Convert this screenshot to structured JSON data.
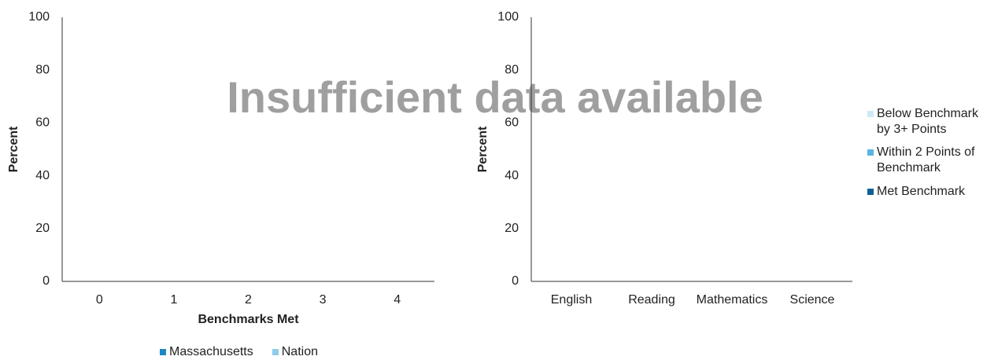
{
  "chart_data": [
    {
      "type": "bar",
      "annotation": "Insufficient data available",
      "categories": [
        "0",
        "1",
        "2",
        "3",
        "4"
      ],
      "x_label": "Benchmarks Met",
      "y_label": "Percent",
      "series": [
        {
          "name": "Massachusetts",
          "color": "#1a87c4",
          "values": [
            null,
            null,
            null,
            null,
            null
          ]
        },
        {
          "name": "Nation",
          "color": "#8dcde8",
          "values": [
            null,
            null,
            null,
            null,
            null
          ]
        }
      ],
      "ylim": [
        0,
        100
      ],
      "yticks": [
        0,
        20,
        40,
        60,
        80,
        100
      ],
      "grid": false,
      "legend": "bottom"
    },
    {
      "type": "bar",
      "stacked": true,
      "categories": [
        "English",
        "Reading",
        "Mathematics",
        "Science"
      ],
      "y_label": "Percent",
      "series": [
        {
          "name": "Below Benchmark by 3+ Points",
          "color": "#cde9f6",
          "values": [
            null,
            null,
            null,
            null
          ]
        },
        {
          "name": "Within 2 Points of Benchmark",
          "color": "#5ab4e3",
          "values": [
            null,
            null,
            null,
            null
          ]
        },
        {
          "name": "Met Benchmark",
          "color": "#0f5f96",
          "values": [
            null,
            null,
            null,
            null
          ]
        }
      ],
      "ylim": [
        0,
        100
      ],
      "yticks": [
        0,
        20,
        40,
        60,
        80,
        100
      ],
      "grid": false,
      "legend": "right"
    }
  ]
}
